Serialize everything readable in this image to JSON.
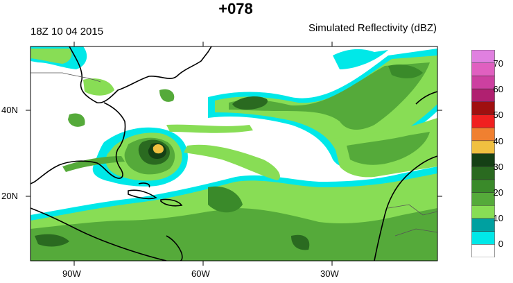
{
  "header": {
    "lead_time": "+078",
    "valid_time": "18Z 10 04 2015",
    "field_name": "Simulated Reflectivity (dBZ)"
  },
  "axes": {
    "lon_labels": [
      "90W",
      "60W",
      "30W"
    ],
    "lat_labels": [
      "40N",
      "20N"
    ]
  },
  "colorbar": {
    "labels": [
      "70",
      "60",
      "50",
      "40",
      "30",
      "20",
      "10",
      "0"
    ],
    "colors": [
      "#ffffff",
      "#00e8e8",
      "#00a0a0",
      "#88dd55",
      "#55aa3a",
      "#3a8a2a",
      "#2a6a20",
      "#154015",
      "#f0c040",
      "#f08030",
      "#f02020",
      "#a01010",
      "#b02070",
      "#cc40a0",
      "#e060c0",
      "#e080e0"
    ]
  }
}
